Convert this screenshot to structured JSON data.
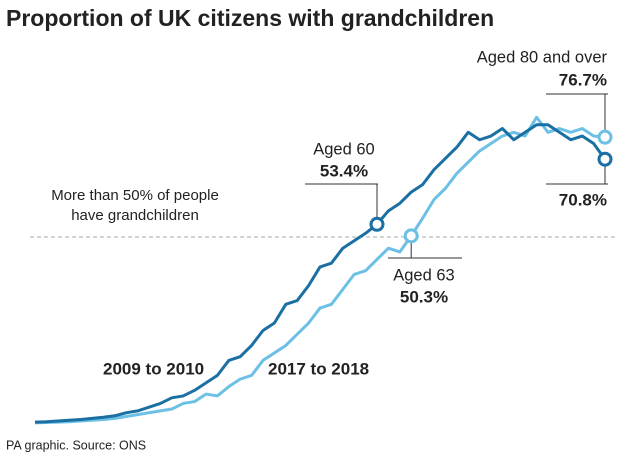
{
  "chart_data": {
    "type": "line",
    "title": "Proportion of UK citizens with grandchildren",
    "source": "PA graphic. Source: ONS",
    "x": [
      30,
      31,
      32,
      33,
      34,
      35,
      36,
      37,
      38,
      39,
      40,
      41,
      42,
      43,
      44,
      45,
      46,
      47,
      48,
      49,
      50,
      51,
      52,
      53,
      54,
      55,
      56,
      57,
      58,
      59,
      60,
      61,
      62,
      63,
      64,
      65,
      66,
      67,
      68,
      69,
      70,
      71,
      72,
      73,
      74,
      75,
      76,
      77,
      78,
      79,
      80
    ],
    "xlim": [
      30,
      80
    ],
    "ylim": [
      0,
      85
    ],
    "series": [
      {
        "name": "2009 to 2010",
        "color": "#1a6fa3",
        "values": [
          0.5,
          0.6,
          0.8,
          1,
          1.2,
          1.5,
          1.8,
          2.2,
          3,
          3.5,
          4.5,
          5.5,
          7,
          7.5,
          9,
          11,
          13,
          17,
          18,
          21,
          25,
          27,
          32,
          33,
          37,
          42,
          43,
          47,
          49,
          51,
          53.4,
          57,
          59,
          62,
          64,
          68,
          71,
          74,
          78,
          76,
          77,
          79,
          76,
          78,
          80,
          80,
          78,
          76,
          77,
          75,
          70.8
        ]
      },
      {
        "name": "2017 to 2018",
        "color": "#6cc0e5",
        "values": [
          0.3,
          0.4,
          0.5,
          0.6,
          0.8,
          1,
          1.2,
          1.5,
          2,
          2.5,
          3,
          3.5,
          4,
          5.5,
          6,
          8,
          7.5,
          10,
          12,
          13,
          17,
          19,
          21,
          24,
          27,
          31,
          32,
          36,
          40,
          41,
          44,
          47,
          46,
          50.3,
          55,
          60,
          63,
          67,
          70,
          73,
          75,
          77,
          78,
          77,
          82,
          78,
          79,
          78,
          79,
          77,
          76.7
        ]
      }
    ],
    "threshold": {
      "value": 50,
      "lines": [
        "More than 50% of people",
        "have grandchildren"
      ]
    },
    "annotations": [
      {
        "series": 0,
        "x": 60,
        "lines": [
          "Aged 60",
          "53.4%"
        ]
      },
      {
        "series": 1,
        "x": 63,
        "lines": [
          "Aged 63",
          "50.3%"
        ]
      },
      {
        "series": 1,
        "x": 80,
        "lines": [
          "Aged 80 and over",
          "76.7%"
        ]
      },
      {
        "series": 0,
        "x": 80,
        "lines": [
          "70.8%"
        ]
      }
    ]
  }
}
